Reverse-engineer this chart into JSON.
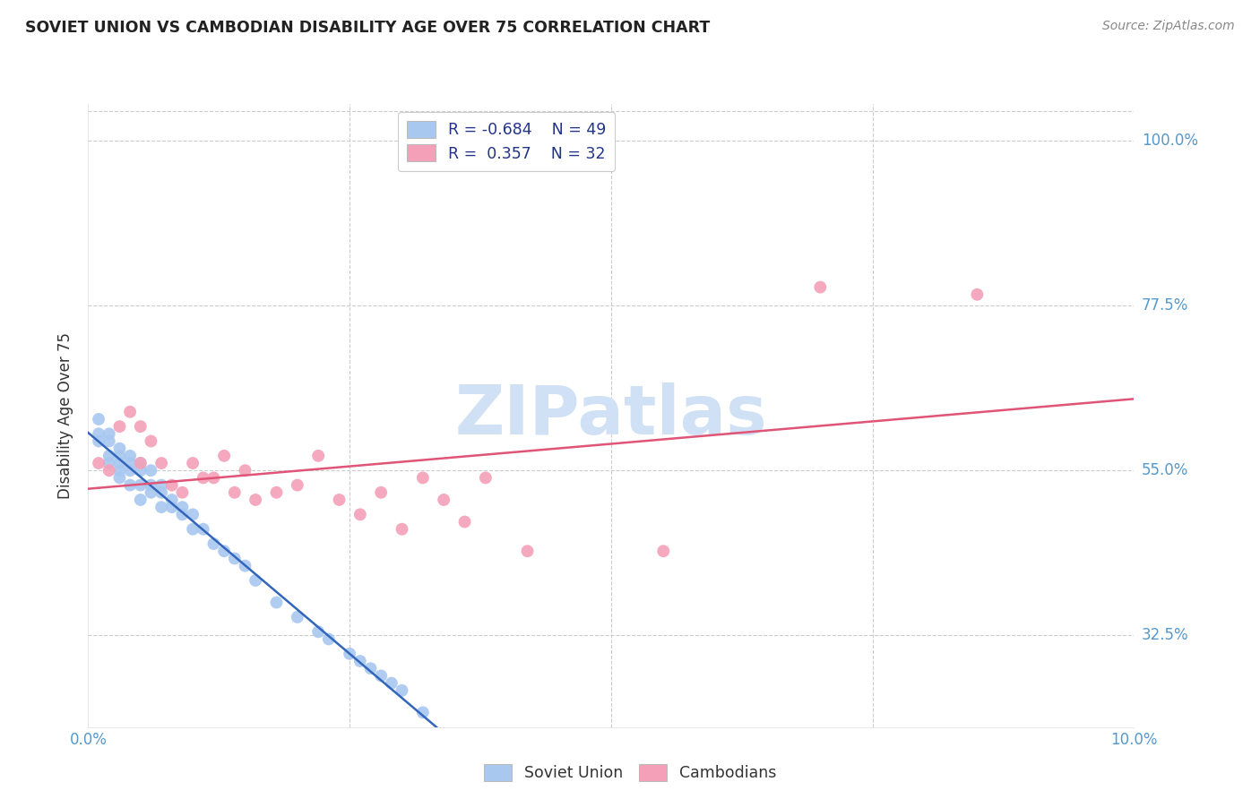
{
  "title": "SOVIET UNION VS CAMBODIAN DISABILITY AGE OVER 75 CORRELATION CHART",
  "source": "Source: ZipAtlas.com",
  "ylabel": "Disability Age Over 75",
  "xlim": [
    0.0,
    0.1
  ],
  "ylim": [
    0.2,
    1.05
  ],
  "xtick_positions": [
    0.0,
    0.1
  ],
  "xtick_labels": [
    "0.0%",
    "10.0%"
  ],
  "ytick_values": [
    0.325,
    0.55,
    0.775,
    1.0
  ],
  "ytick_labels": [
    "32.5%",
    "55.0%",
    "77.5%",
    "100.0%"
  ],
  "inner_xticks": [
    0.025,
    0.05,
    0.075
  ],
  "grid_color": "#cccccc",
  "background_color": "#ffffff",
  "soviet_color": "#a8c8f0",
  "cambodian_color": "#f4a0b8",
  "soviet_line_color": "#3366bb",
  "cambodian_line_color": "#e05577",
  "soviet_R": -0.684,
  "soviet_N": 49,
  "cambodian_R": 0.357,
  "cambodian_N": 32,
  "watermark": "ZIPatlas",
  "watermark_color": "#d0e0f5",
  "tick_color": "#5599cc",
  "title_color": "#222222",
  "source_color": "#888888",
  "legend_text_color": "#223388",
  "soviet_x": [
    0.001,
    0.001,
    0.001,
    0.002,
    0.002,
    0.002,
    0.002,
    0.003,
    0.003,
    0.003,
    0.003,
    0.003,
    0.004,
    0.004,
    0.004,
    0.004,
    0.005,
    0.005,
    0.005,
    0.005,
    0.006,
    0.006,
    0.006,
    0.007,
    0.007,
    0.007,
    0.008,
    0.008,
    0.009,
    0.009,
    0.01,
    0.01,
    0.011,
    0.012,
    0.013,
    0.014,
    0.015,
    0.016,
    0.018,
    0.02,
    0.022,
    0.023,
    0.025,
    0.026,
    0.027,
    0.028,
    0.029,
    0.03,
    0.032
  ],
  "soviet_y": [
    0.62,
    0.6,
    0.59,
    0.6,
    0.59,
    0.57,
    0.56,
    0.58,
    0.57,
    0.56,
    0.55,
    0.54,
    0.57,
    0.56,
    0.55,
    0.53,
    0.56,
    0.55,
    0.53,
    0.51,
    0.55,
    0.53,
    0.52,
    0.53,
    0.52,
    0.5,
    0.51,
    0.5,
    0.5,
    0.49,
    0.49,
    0.47,
    0.47,
    0.45,
    0.44,
    0.43,
    0.42,
    0.4,
    0.37,
    0.35,
    0.33,
    0.32,
    0.3,
    0.29,
    0.28,
    0.27,
    0.26,
    0.25,
    0.22
  ],
  "cambodian_x": [
    0.001,
    0.002,
    0.003,
    0.004,
    0.005,
    0.005,
    0.006,
    0.007,
    0.008,
    0.009,
    0.01,
    0.011,
    0.012,
    0.013,
    0.014,
    0.015,
    0.016,
    0.018,
    0.02,
    0.022,
    0.024,
    0.026,
    0.028,
    0.03,
    0.032,
    0.034,
    0.036,
    0.038,
    0.042,
    0.055,
    0.07,
    0.085
  ],
  "cambodian_y": [
    0.56,
    0.55,
    0.61,
    0.63,
    0.61,
    0.56,
    0.59,
    0.56,
    0.53,
    0.52,
    0.56,
    0.54,
    0.54,
    0.57,
    0.52,
    0.55,
    0.51,
    0.52,
    0.53,
    0.57,
    0.51,
    0.49,
    0.52,
    0.47,
    0.54,
    0.51,
    0.48,
    0.54,
    0.44,
    0.44,
    0.8,
    0.79
  ]
}
